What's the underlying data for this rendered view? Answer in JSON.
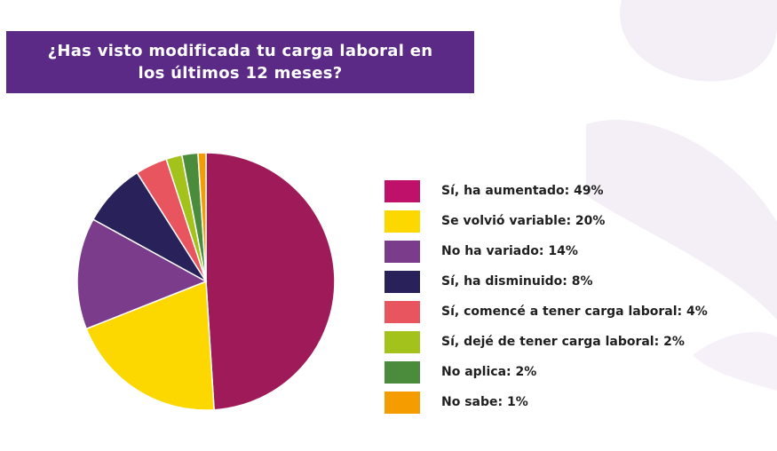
{
  "chart_data": {
    "type": "pie",
    "title_lines": [
      "¿Has visto modificada tu carga laboral en",
      "los últimos 12 meses?"
    ],
    "start_angle_deg": 0,
    "direction": "clockwise",
    "slices": [
      {
        "label": "Sí, ha aumentado: 49%",
        "value": 49,
        "color": "#9e1a58"
      },
      {
        "label": "Se volvió variable: 20%",
        "value": 20,
        "color": "#fcd800"
      },
      {
        "label": "No ha variado: 14%",
        "value": 14,
        "color": "#7c3c8c"
      },
      {
        "label": "Sí, ha disminuido: 8%",
        "value": 8,
        "color": "#28215a"
      },
      {
        "label": "Sí, comencé a tener carga laboral: 4%",
        "value": 4,
        "color": "#e8555e"
      },
      {
        "label": "Sí, dejé de tener carga laboral: 2%",
        "value": 2,
        "color": "#a4c21c"
      },
      {
        "label": "No aplica: 2%",
        "value": 2,
        "color": "#4b8c3c"
      },
      {
        "label": "No sabe: 1%",
        "value": 1,
        "color": "#f49c00"
      }
    ],
    "legend_swatch_colors": [
      "#c0116a",
      "#fcd800",
      "#7c3c8c",
      "#28215a",
      "#e8555e",
      "#a4c21c",
      "#4b8c3c",
      "#f49c00"
    ],
    "legend_position": "right"
  }
}
